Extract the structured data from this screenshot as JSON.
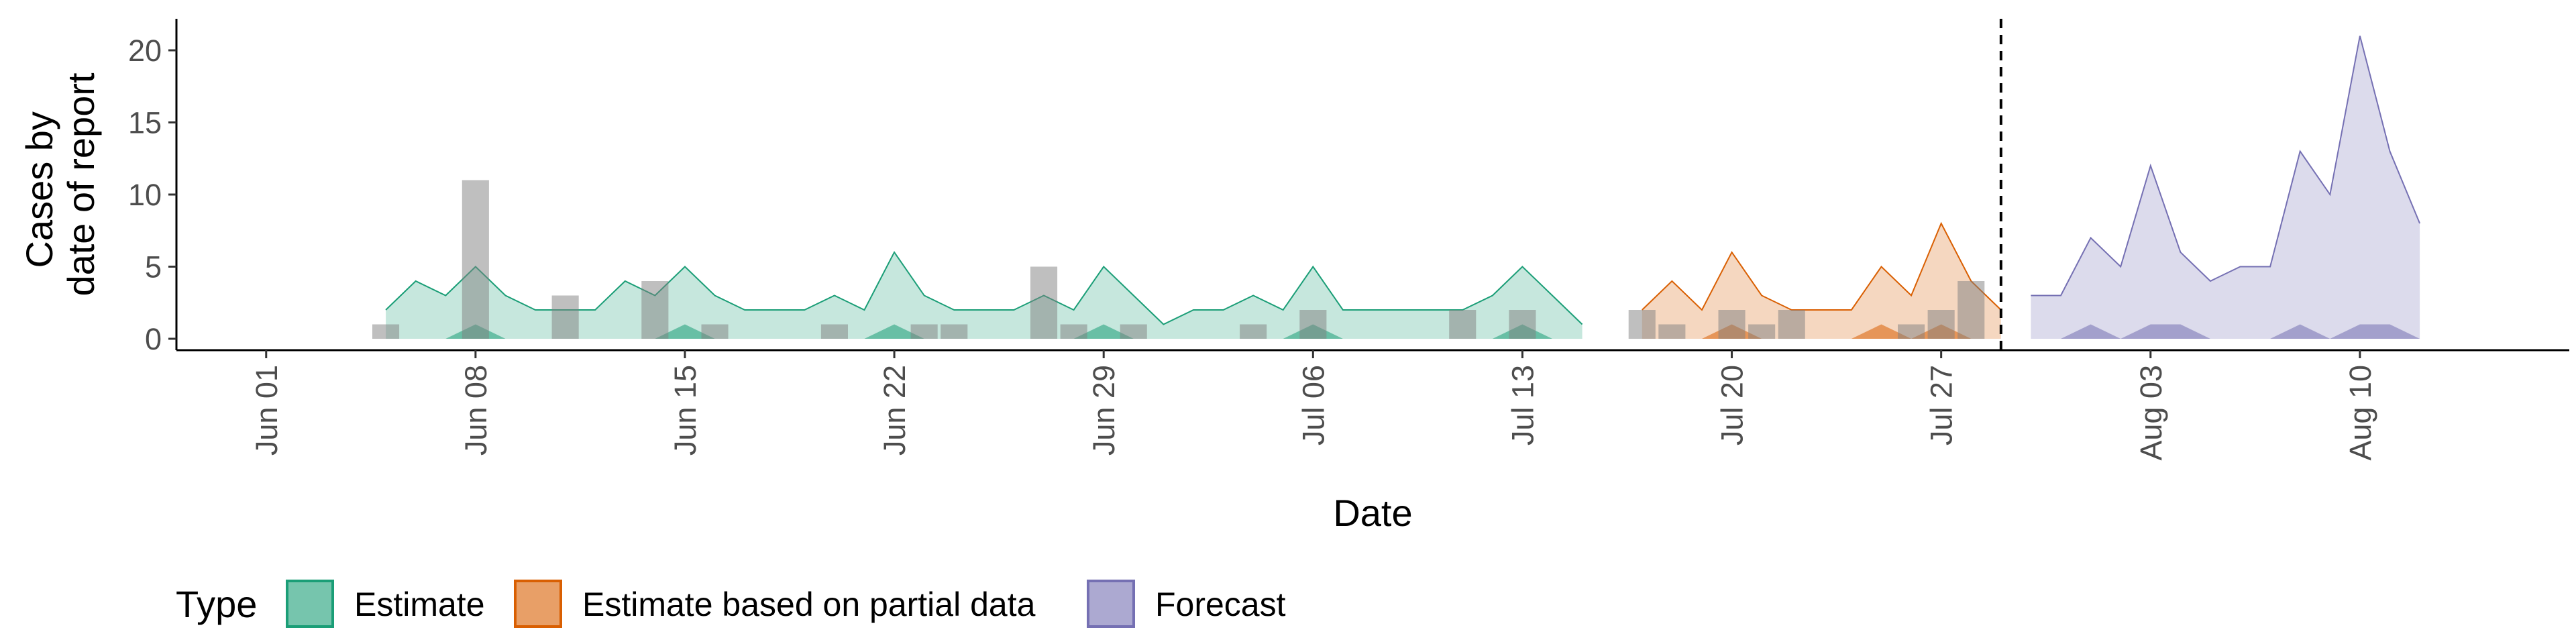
{
  "chart_data": {
    "type": "area",
    "xlabel": "Date",
    "ylabel": [
      "Cases by",
      "date of report"
    ],
    "ylim": [
      0,
      22
    ],
    "y_ticks": [
      0,
      5,
      10,
      15,
      20
    ],
    "x_ticks": [
      {
        "date": "2020-06-01",
        "label": "Jun 01"
      },
      {
        "date": "2020-06-08",
        "label": "Jun 08"
      },
      {
        "date": "2020-06-15",
        "label": "Jun 15"
      },
      {
        "date": "2020-06-22",
        "label": "Jun 22"
      },
      {
        "date": "2020-06-29",
        "label": "Jun 29"
      },
      {
        "date": "2020-07-06",
        "label": "Jul 06"
      },
      {
        "date": "2020-07-13",
        "label": "Jul 13"
      },
      {
        "date": "2020-07-20",
        "label": "Jul 20"
      },
      {
        "date": "2020-07-27",
        "label": "Jul 27"
      },
      {
        "date": "2020-08-03",
        "label": "Aug 03"
      },
      {
        "date": "2020-08-10",
        "label": "Aug 10"
      }
    ],
    "xlim": [
      "2020-05-29",
      "2020-08-17"
    ],
    "vline_date": "2020-07-29",
    "legend": {
      "title": "Type",
      "position": "bottom"
    },
    "series": [
      {
        "name": "Estimate",
        "color": "#1b9e77",
        "x": [
          "2020-06-05",
          "2020-06-06",
          "2020-06-07",
          "2020-06-08",
          "2020-06-09",
          "2020-06-10",
          "2020-06-11",
          "2020-06-12",
          "2020-06-13",
          "2020-06-14",
          "2020-06-15",
          "2020-06-16",
          "2020-06-17",
          "2020-06-18",
          "2020-06-19",
          "2020-06-20",
          "2020-06-21",
          "2020-06-22",
          "2020-06-23",
          "2020-06-24",
          "2020-06-25",
          "2020-06-26",
          "2020-06-27",
          "2020-06-28",
          "2020-06-29",
          "2020-06-30",
          "2020-07-01",
          "2020-07-02",
          "2020-07-03",
          "2020-07-04",
          "2020-07-05",
          "2020-07-06",
          "2020-07-07",
          "2020-07-08",
          "2020-07-09",
          "2020-07-10",
          "2020-07-11",
          "2020-07-12",
          "2020-07-13",
          "2020-07-14",
          "2020-07-15"
        ],
        "upper": [
          2,
          4,
          3,
          5,
          3,
          2,
          2,
          2,
          4,
          3,
          5,
          3,
          2,
          2,
          2,
          3,
          2,
          6,
          3,
          2,
          2,
          2,
          3,
          2,
          5,
          3,
          1,
          2,
          2,
          3,
          2,
          5,
          2,
          2,
          2,
          2,
          2,
          3,
          5,
          3,
          1
        ],
        "lower": [
          0,
          0,
          0,
          1,
          0,
          0,
          0,
          0,
          0,
          0,
          1,
          0,
          0,
          0,
          0,
          0,
          0,
          1,
          0,
          0,
          0,
          0,
          0,
          0,
          1,
          0,
          0,
          0,
          0,
          0,
          0,
          1,
          0,
          0,
          0,
          0,
          0,
          0,
          1,
          0,
          0
        ]
      },
      {
        "name": "Estimate based on partial data",
        "color": "#d95f02",
        "x": [
          "2020-07-17",
          "2020-07-18",
          "2020-07-19",
          "2020-07-20",
          "2020-07-21",
          "2020-07-22",
          "2020-07-23",
          "2020-07-24",
          "2020-07-25",
          "2020-07-26",
          "2020-07-27",
          "2020-07-28",
          "2020-07-29"
        ],
        "upper": [
          2,
          4,
          2,
          6,
          3,
          2,
          2,
          2,
          5,
          3,
          8,
          4,
          2
        ],
        "lower": [
          0,
          0,
          0,
          1,
          0,
          0,
          0,
          0,
          1,
          0,
          1,
          0,
          0
        ]
      },
      {
        "name": "Forecast",
        "color": "#7570b3",
        "x": [
          "2020-07-30",
          "2020-07-31",
          "2020-08-01",
          "2020-08-02",
          "2020-08-03",
          "2020-08-04",
          "2020-08-05",
          "2020-08-06",
          "2020-08-07",
          "2020-08-08",
          "2020-08-09",
          "2020-08-10",
          "2020-08-11",
          "2020-08-12"
        ],
        "upper": [
          3,
          3,
          7,
          5,
          12,
          6,
          4,
          5,
          5,
          13,
          10,
          21,
          13,
          8
        ],
        "lower": [
          0,
          0,
          1,
          0,
          1,
          1,
          0,
          0,
          0,
          1,
          0,
          1,
          1,
          0
        ]
      }
    ],
    "reported_cases": {
      "color": "#808080",
      "points": [
        {
          "date": "2020-06-05",
          "value": 1
        },
        {
          "date": "2020-06-08",
          "value": 11
        },
        {
          "date": "2020-06-11",
          "value": 3
        },
        {
          "date": "2020-06-14",
          "value": 4
        },
        {
          "date": "2020-06-16",
          "value": 1
        },
        {
          "date": "2020-06-20",
          "value": 1
        },
        {
          "date": "2020-06-23",
          "value": 1
        },
        {
          "date": "2020-06-24",
          "value": 1
        },
        {
          "date": "2020-06-27",
          "value": 5
        },
        {
          "date": "2020-06-28",
          "value": 1
        },
        {
          "date": "2020-06-30",
          "value": 1
        },
        {
          "date": "2020-07-04",
          "value": 1
        },
        {
          "date": "2020-07-06",
          "value": 2
        },
        {
          "date": "2020-07-11",
          "value": 2
        },
        {
          "date": "2020-07-13",
          "value": 2
        },
        {
          "date": "2020-07-17",
          "value": 2
        },
        {
          "date": "2020-07-18",
          "value": 1
        },
        {
          "date": "2020-07-20",
          "value": 2
        },
        {
          "date": "2020-07-21",
          "value": 1
        },
        {
          "date": "2020-07-22",
          "value": 2
        },
        {
          "date": "2020-07-26",
          "value": 1
        },
        {
          "date": "2020-07-27",
          "value": 2
        },
        {
          "date": "2020-07-28",
          "value": 4
        }
      ]
    }
  }
}
